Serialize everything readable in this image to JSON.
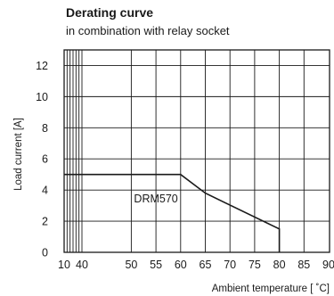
{
  "header": {
    "title": "Derating curve",
    "subtitle": "in combination with relay socket"
  },
  "chart_data": {
    "type": "line",
    "xlabel": "Ambient temperature [ ˚C]",
    "ylabel": "Load current [A]",
    "x_ticks": [
      "10",
      "40",
      "50",
      "55",
      "60",
      "65",
      "70",
      "75",
      "80",
      "85",
      "90"
    ],
    "y_ticks": [
      0,
      2,
      4,
      6,
      8,
      10,
      12
    ],
    "ylim": [
      0,
      13
    ],
    "grid": true,
    "series": [
      {
        "name": "DRM570",
        "x": [
          10,
          60,
          65,
          80,
          80
        ],
        "y": [
          5,
          5,
          3.8,
          1.5,
          0
        ]
      }
    ]
  }
}
